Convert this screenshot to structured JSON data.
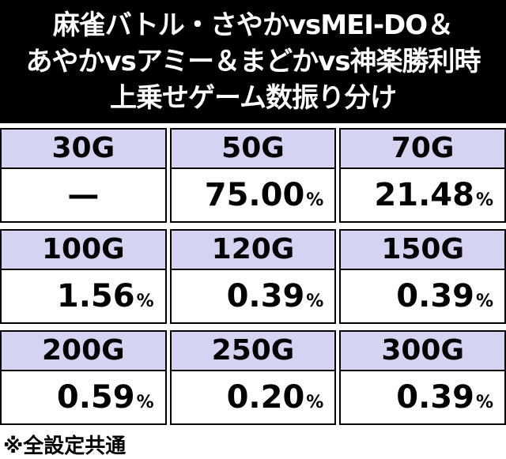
{
  "header": {
    "title_lines": [
      "麻雀バトル・さやかvsMEI-DO＆",
      "あやかvsアミー＆まどかvs神楽勝利時",
      "上乗せゲーム数振り分け"
    ]
  },
  "table": {
    "blocks": [
      {
        "cells": [
          {
            "label": "30G",
            "value": "—"
          },
          {
            "label": "50G",
            "value": "75.00",
            "unit": "%"
          },
          {
            "label": "70G",
            "value": "21.48",
            "unit": "%"
          }
        ]
      },
      {
        "cells": [
          {
            "label": "100G",
            "value": "1.56",
            "unit": "%"
          },
          {
            "label": "120G",
            "value": "0.39",
            "unit": "%"
          },
          {
            "label": "150G",
            "value": "0.39",
            "unit": "%"
          }
        ]
      },
      {
        "cells": [
          {
            "label": "200G",
            "value": "0.59",
            "unit": "%"
          },
          {
            "label": "250G",
            "value": "0.20",
            "unit": "%"
          },
          {
            "label": "300G",
            "value": "0.39",
            "unit": "%"
          }
        ]
      }
    ]
  },
  "footer": {
    "note": "※全設定共通"
  }
}
